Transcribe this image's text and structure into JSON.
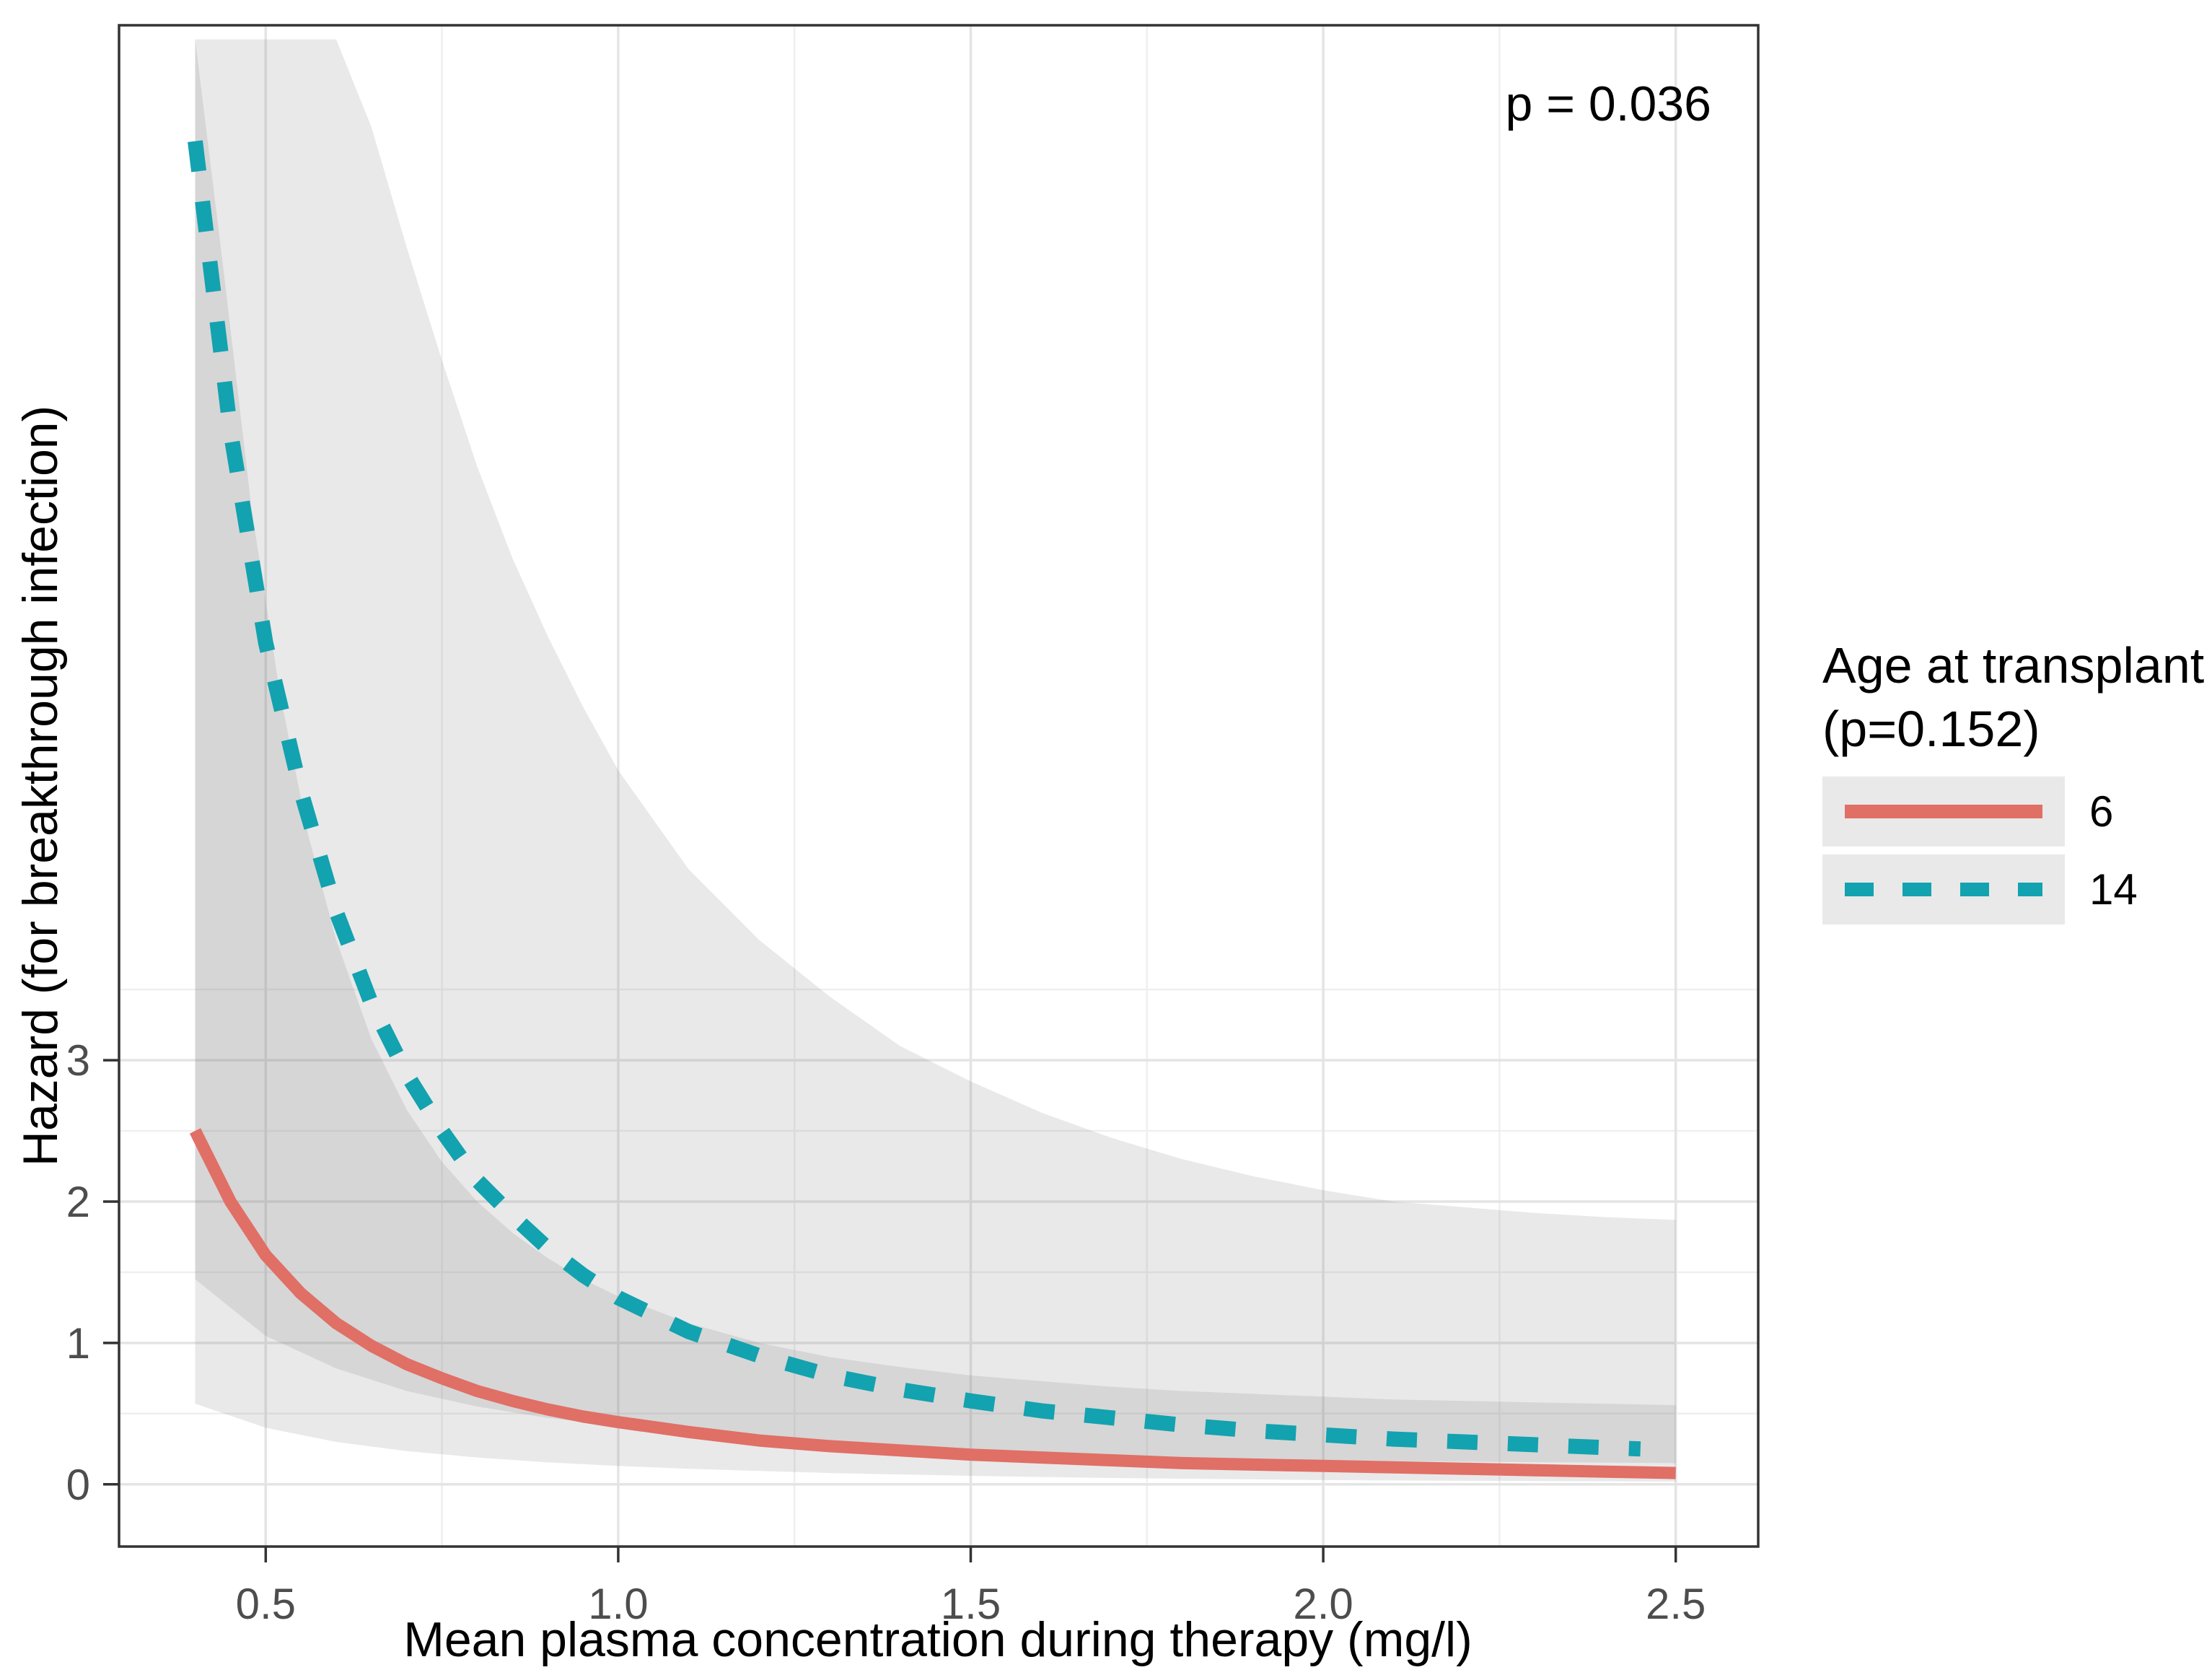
{
  "figure": {
    "annotation": "p = 0.036",
    "legend": {
      "title_line1": "Age at transplant",
      "title_line2": "(p=0.152)",
      "items": [
        {
          "label": "6",
          "color": "#E06F66",
          "line_style": "solid"
        },
        {
          "label": "14",
          "color": "#13A2AF",
          "line_style": "dashed"
        }
      ]
    }
  },
  "colors": {
    "series_6": "#E06F66",
    "series_14": "#13A2AF",
    "ribbon_fill": "rgba(125,125,125,0.17)",
    "grid_major": "#E4E4E4",
    "grid_minor": "#EFEFEF",
    "panel_border": "#333333",
    "tick": "#333333",
    "tick_label": "#4D4D4D",
    "text": "#000000",
    "legend_key_bg": "#E9E9E9",
    "panel_bg": "#FFFFFF"
  },
  "chart_data": {
    "type": "line",
    "title": "",
    "annotation": "p = 0.036",
    "xlabel": "Mean plasma concentration during therapy (mg/l)",
    "ylabel": "Hazard (for breakthrough infection)",
    "legend_position": "right",
    "legend_title": "Age at transplant (p=0.152)",
    "grid": true,
    "xlim": [
      0.292,
      2.617
    ],
    "ylim": [
      -0.44,
      10.32
    ],
    "x_ticks": [
      0.5,
      1.0,
      1.5,
      2.0,
      2.5
    ],
    "x_tick_labels": [
      "0.5",
      "1.0",
      "1.5",
      "2.0",
      "2.5"
    ],
    "y_ticks": [
      0,
      1,
      2,
      3
    ],
    "y_tick_labels": [
      "0",
      "1",
      "2",
      "3"
    ],
    "x_minor": [
      0.75,
      1.25,
      1.75,
      2.25
    ],
    "y_minor": [
      0.5,
      1.5,
      2.5,
      3.5
    ],
    "series": [
      {
        "name": "6",
        "style": "solid",
        "color": "#E06F66",
        "points": [
          [
            0.4,
            2.5
          ],
          [
            0.45,
            2.0
          ],
          [
            0.5,
            1.62
          ],
          [
            0.55,
            1.35
          ],
          [
            0.6,
            1.14
          ],
          [
            0.65,
            0.98
          ],
          [
            0.7,
            0.85
          ],
          [
            0.75,
            0.75
          ],
          [
            0.8,
            0.66
          ],
          [
            0.85,
            0.59
          ],
          [
            0.9,
            0.53
          ],
          [
            0.95,
            0.48
          ],
          [
            1.0,
            0.44
          ],
          [
            1.1,
            0.37
          ],
          [
            1.2,
            0.31
          ],
          [
            1.3,
            0.27
          ],
          [
            1.4,
            0.24
          ],
          [
            1.5,
            0.21
          ],
          [
            1.6,
            0.19
          ],
          [
            1.7,
            0.17
          ],
          [
            1.8,
            0.15
          ],
          [
            1.9,
            0.14
          ],
          [
            2.0,
            0.13
          ],
          [
            2.1,
            0.12
          ],
          [
            2.2,
            0.11
          ],
          [
            2.3,
            0.1
          ],
          [
            2.4,
            0.09
          ],
          [
            2.5,
            0.08
          ]
        ]
      },
      {
        "name": "14",
        "style": "dashed",
        "color": "#13A2AF",
        "points": [
          [
            0.4,
            9.5
          ],
          [
            0.45,
            7.45
          ],
          [
            0.5,
            5.95
          ],
          [
            0.55,
            4.9
          ],
          [
            0.6,
            4.05
          ],
          [
            0.65,
            3.4
          ],
          [
            0.7,
            2.9
          ],
          [
            0.75,
            2.5
          ],
          [
            0.8,
            2.15
          ],
          [
            0.85,
            1.9
          ],
          [
            0.9,
            1.67
          ],
          [
            0.95,
            1.48
          ],
          [
            1.0,
            1.32
          ],
          [
            1.1,
            1.08
          ],
          [
            1.2,
            0.91
          ],
          [
            1.3,
            0.77
          ],
          [
            1.4,
            0.67
          ],
          [
            1.5,
            0.59
          ],
          [
            1.6,
            0.52
          ],
          [
            1.7,
            0.47
          ],
          [
            1.8,
            0.42
          ],
          [
            1.9,
            0.38
          ],
          [
            2.0,
            0.35
          ],
          [
            2.1,
            0.32
          ],
          [
            2.2,
            0.3
          ],
          [
            2.3,
            0.28
          ],
          [
            2.4,
            0.26
          ],
          [
            2.45,
            0.25
          ]
        ]
      }
    ],
    "ribbons": [
      {
        "series": "6",
        "hi": [
          [
            0.4,
            10.22
          ],
          [
            0.44,
            8.6
          ],
          [
            0.48,
            6.9
          ],
          [
            0.52,
            5.6
          ],
          [
            0.56,
            4.6
          ],
          [
            0.6,
            3.85
          ],
          [
            0.65,
            3.15
          ],
          [
            0.7,
            2.65
          ],
          [
            0.75,
            2.28
          ],
          [
            0.8,
            2.0
          ],
          [
            0.85,
            1.78
          ],
          [
            0.9,
            1.6
          ],
          [
            0.95,
            1.45
          ],
          [
            1.0,
            1.33
          ],
          [
            1.1,
            1.14
          ],
          [
            1.2,
            1.0
          ],
          [
            1.3,
            0.9
          ],
          [
            1.4,
            0.83
          ],
          [
            1.5,
            0.77
          ],
          [
            1.6,
            0.73
          ],
          [
            1.7,
            0.69
          ],
          [
            1.8,
            0.66
          ],
          [
            1.9,
            0.64
          ],
          [
            2.0,
            0.62
          ],
          [
            2.1,
            0.6
          ],
          [
            2.2,
            0.59
          ],
          [
            2.3,
            0.58
          ],
          [
            2.4,
            0.57
          ],
          [
            2.5,
            0.56
          ]
        ],
        "lo": [
          [
            0.4,
            0.57
          ],
          [
            0.5,
            0.4
          ],
          [
            0.6,
            0.3
          ],
          [
            0.7,
            0.235
          ],
          [
            0.8,
            0.19
          ],
          [
            0.9,
            0.155
          ],
          [
            1.0,
            0.13
          ],
          [
            1.1,
            0.11
          ],
          [
            1.2,
            0.095
          ],
          [
            1.3,
            0.08
          ],
          [
            1.4,
            0.07
          ],
          [
            1.5,
            0.06
          ],
          [
            1.6,
            0.052
          ],
          [
            1.7,
            0.045
          ],
          [
            1.8,
            0.04
          ],
          [
            1.9,
            0.035
          ],
          [
            2.0,
            0.03
          ],
          [
            2.2,
            0.025
          ],
          [
            2.5,
            0.02
          ]
        ]
      },
      {
        "series": "14",
        "hi": [
          [
            0.4,
            10.22
          ],
          [
            0.6,
            10.22
          ],
          [
            0.65,
            9.6
          ],
          [
            0.7,
            8.75
          ],
          [
            0.75,
            7.95
          ],
          [
            0.8,
            7.2
          ],
          [
            0.85,
            6.55
          ],
          [
            0.9,
            6.0
          ],
          [
            0.95,
            5.5
          ],
          [
            1.0,
            5.05
          ],
          [
            1.1,
            4.35
          ],
          [
            1.2,
            3.85
          ],
          [
            1.3,
            3.45
          ],
          [
            1.4,
            3.1
          ],
          [
            1.5,
            2.85
          ],
          [
            1.6,
            2.63
          ],
          [
            1.7,
            2.45
          ],
          [
            1.8,
            2.3
          ],
          [
            1.9,
            2.18
          ],
          [
            2.0,
            2.08
          ],
          [
            2.1,
            2.0
          ],
          [
            2.2,
            1.96
          ],
          [
            2.3,
            1.92
          ],
          [
            2.4,
            1.89
          ],
          [
            2.5,
            1.87
          ]
        ],
        "lo": [
          [
            0.4,
            1.45
          ],
          [
            0.5,
            1.05
          ],
          [
            0.6,
            0.82
          ],
          [
            0.7,
            0.66
          ],
          [
            0.8,
            0.55
          ],
          [
            0.9,
            0.47
          ],
          [
            1.0,
            0.41
          ],
          [
            1.1,
            0.36
          ],
          [
            1.2,
            0.32
          ],
          [
            1.3,
            0.285
          ],
          [
            1.4,
            0.26
          ],
          [
            1.5,
            0.235
          ],
          [
            1.6,
            0.215
          ],
          [
            1.7,
            0.2
          ],
          [
            1.8,
            0.19
          ],
          [
            1.9,
            0.18
          ],
          [
            2.0,
            0.17
          ],
          [
            2.2,
            0.16
          ],
          [
            2.35,
            0.155
          ],
          [
            2.5,
            0.15
          ]
        ]
      }
    ]
  }
}
